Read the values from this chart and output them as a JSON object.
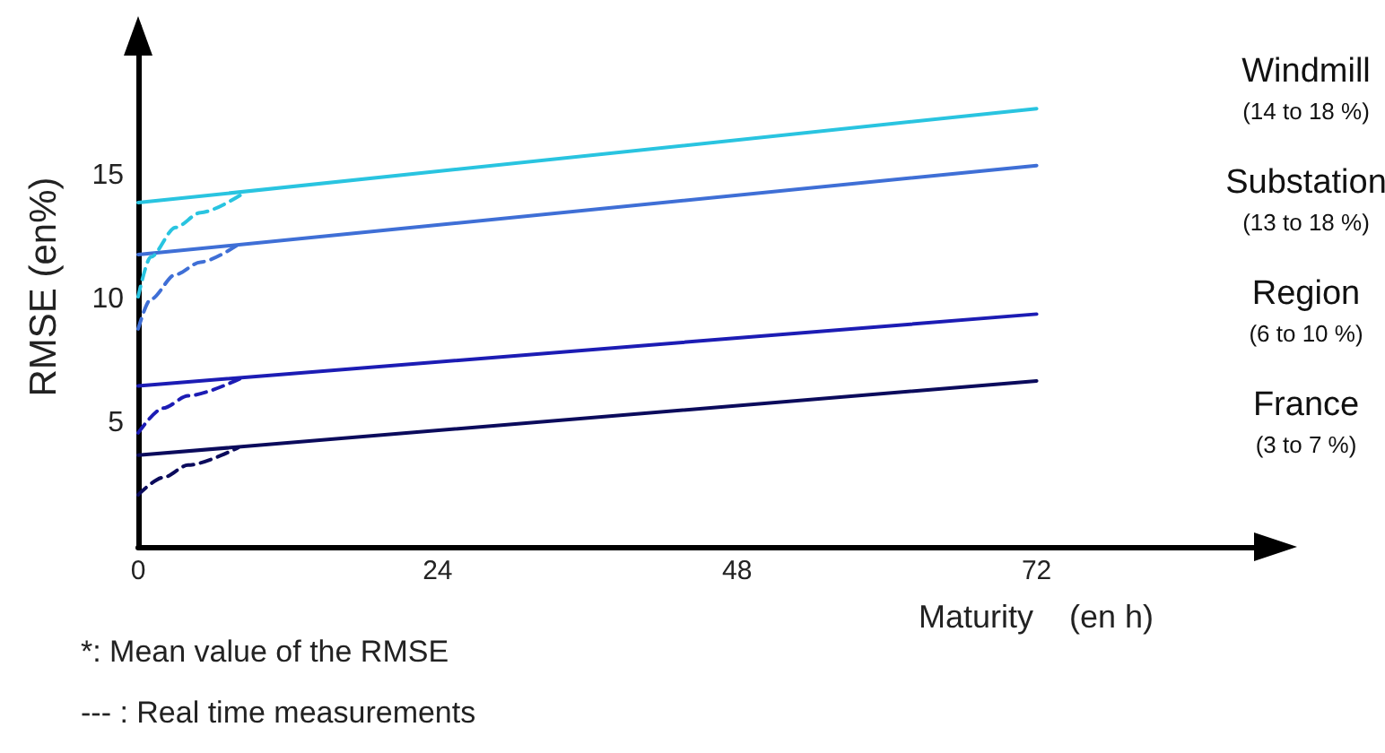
{
  "chart_data": {
    "type": "line",
    "xlabel": "Maturity    (en h)",
    "ylabel": "RMSE (en%)",
    "xlim": [
      0,
      90
    ],
    "xticks": [
      0,
      24,
      48,
      72
    ],
    "ylim": [
      0,
      21
    ],
    "yticks": [
      5,
      10,
      15
    ],
    "grid": false,
    "legend": false,
    "marker": "none",
    "series": [
      {
        "name": "Windmill",
        "color": "#29c4e0",
        "x": [
          0,
          72
        ],
        "values": [
          13.9,
          17.7
        ],
        "line_style": "solid"
      },
      {
        "name": "Substation",
        "color": "#3f6fd6",
        "x": [
          0,
          72
        ],
        "values": [
          11.8,
          15.4
        ],
        "line_style": "solid"
      },
      {
        "name": "Region",
        "color": "#1c1cb4",
        "x": [
          0,
          72
        ],
        "values": [
          6.5,
          9.4
        ],
        "line_style": "solid"
      },
      {
        "name": "France",
        "color": "#0b0b5c",
        "x": [
          0,
          72
        ],
        "values": [
          3.7,
          6.7
        ],
        "line_style": "solid"
      },
      {
        "color": "#29c4e0",
        "x": [
          0,
          1,
          3,
          5,
          8.5
        ],
        "values": [
          10.1,
          11.7,
          12.9,
          13.5,
          14.3
        ],
        "line_style": "dashed"
      },
      {
        "color": "#3f6fd6",
        "x": [
          0,
          1,
          3,
          5,
          8
        ],
        "values": [
          8.8,
          10.0,
          11.0,
          11.5,
          12.2
        ],
        "line_style": "dashed"
      },
      {
        "color": "#1c1cb4",
        "x": [
          0,
          2,
          4,
          8.2
        ],
        "values": [
          4.6,
          5.6,
          6.1,
          6.8
        ],
        "line_style": "dashed"
      },
      {
        "color": "#0b0b5c",
        "x": [
          0,
          2,
          4,
          8
        ],
        "values": [
          2.1,
          2.8,
          3.3,
          4.0
        ],
        "line_style": "dashed"
      }
    ],
    "annotations": [
      "(14 to 18 %)",
      "(13 to 18 %)",
      "(6 to 10 %)",
      "(3 to 7 %)",
      "*: Mean value of the RMSE",
      "--- : Real time measurements"
    ]
  }
}
